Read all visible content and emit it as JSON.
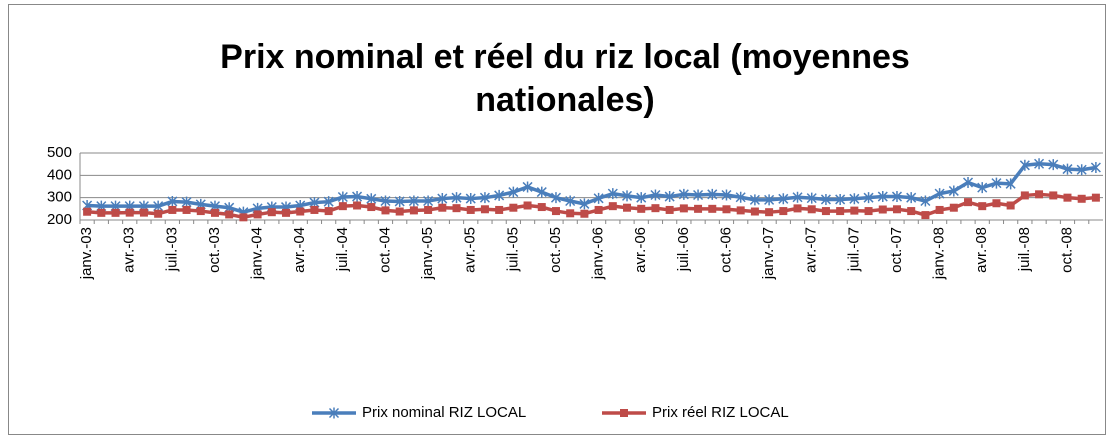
{
  "chart_data": {
    "type": "line",
    "title": "Prix nominal et réel du riz local (moyennes nationales)",
    "categories": [
      "janv.-03",
      null,
      null,
      "avr.-03",
      null,
      null,
      "juil.-03",
      null,
      null,
      "oct.-03",
      null,
      null,
      "janv.-04",
      null,
      null,
      "avr.-04",
      null,
      null,
      "juil.-04",
      null,
      null,
      "oct.-04",
      null,
      null,
      "janv.-05",
      null,
      null,
      "avr.-05",
      null,
      null,
      "juil.-05",
      null,
      null,
      "oct.-05",
      null,
      null,
      "janv.-06",
      null,
      null,
      "avr.-06",
      null,
      null,
      "juil.-06",
      null,
      null,
      "oct.-06",
      null,
      null,
      "janv.-07",
      null,
      null,
      "avr.-07",
      null,
      null,
      "juil.-07",
      null,
      null,
      "oct.-07",
      null,
      null,
      "janv.-08",
      null,
      null,
      "avr.-08",
      null,
      null,
      "juil.-08",
      null,
      null,
      "oct.-08",
      null,
      null
    ],
    "series": [
      {
        "name": "Prix nominal RIZ LOCAL",
        "color": "#4a7ebb",
        "marker": "star",
        "values": [
          265,
          262,
          262,
          262,
          262,
          262,
          283,
          280,
          270,
          262,
          255,
          235,
          252,
          258,
          258,
          265,
          278,
          282,
          303,
          305,
          295,
          285,
          283,
          285,
          285,
          296,
          300,
          296,
          300,
          310,
          325,
          348,
          325,
          300,
          285,
          272,
          297,
          318,
          308,
          300,
          312,
          305,
          315,
          312,
          315,
          312,
          302,
          290,
          290,
          295,
          302,
          298,
          292,
          292,
          295,
          300,
          305,
          305,
          300,
          285,
          318,
          330,
          368,
          345,
          365,
          362,
          445,
          452,
          448,
          428,
          425,
          435
        ]
      },
      {
        "name": "Prix réel RIZ LOCAL",
        "color": "#be4b48",
        "marker": "square",
        "values": [
          237,
          232,
          232,
          233,
          233,
          228,
          245,
          245,
          240,
          232,
          225,
          212,
          225,
          235,
          232,
          238,
          245,
          240,
          262,
          265,
          258,
          243,
          238,
          243,
          245,
          255,
          253,
          245,
          248,
          245,
          255,
          265,
          258,
          240,
          230,
          228,
          245,
          262,
          255,
          250,
          253,
          245,
          252,
          250,
          250,
          248,
          243,
          238,
          235,
          240,
          252,
          248,
          240,
          240,
          242,
          240,
          247,
          248,
          240,
          222,
          245,
          255,
          280,
          262,
          275,
          265,
          310,
          315,
          310,
          300,
          295,
          300
        ]
      }
    ],
    "ylim": [
      200,
      500
    ],
    "yticks": [
      200,
      300,
      400,
      500
    ],
    "grid": true,
    "legend": "bottom"
  }
}
